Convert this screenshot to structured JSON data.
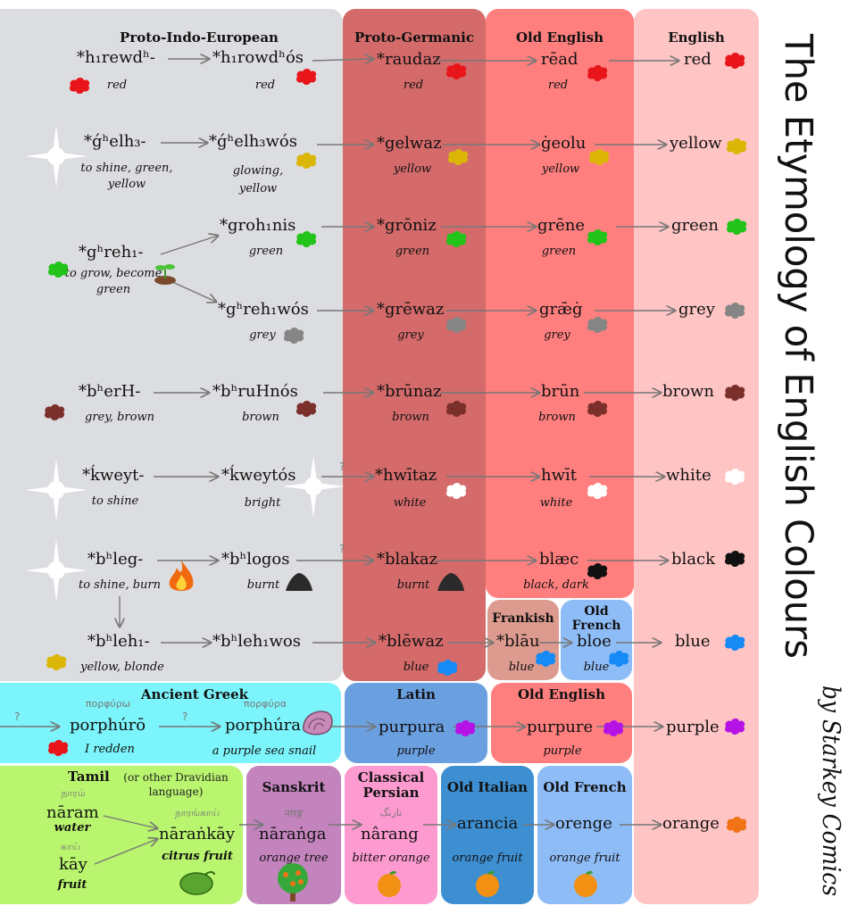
{
  "title": "The Etymology of English Colours",
  "byline": "by Starkey Comics",
  "headers": {
    "pie": "Proto-Indo-European",
    "pg": "Proto-Germanic",
    "oe": "Old English",
    "en": "English",
    "frankish": "Frankish",
    "old_french_blue": "Old French",
    "greek": "Ancient Greek",
    "latin": "Latin",
    "oe_purple": "Old English",
    "tamil": "Tamil",
    "tamil_note": "(or other Dravidian language)",
    "sanskrit": "Sanskrit",
    "persian": "Classical Persian",
    "italian": "Old Italian",
    "old_french": "Old French"
  },
  "colors": {
    "red": "#e8151b",
    "yellow": "#dcb607",
    "green": "#22c41a",
    "grey": "#858585",
    "brown": "#7a2f2b",
    "white": "#ffffff",
    "black": "#111111",
    "blue": "#168af5",
    "purple": "#b512e6",
    "orange": "#f17316",
    "pie_bg": "#dcdde0",
    "pg_bg": "#d46a6a",
    "oe_bg": "#ff7f7f",
    "en_bg": "#ffc4c4",
    "greek_bg": "#7cf4fb",
    "latin_bg": "#6a9fe0",
    "tamil_bg": "#b9f56e",
    "sanskrit_bg": "#c384be",
    "persian_bg": "#fd9ad0",
    "italian_bg": "#3d8fd1",
    "oldfr_bg": "#8ebcf6",
    "frankish_bg": "#dd9b8f"
  },
  "rows": {
    "red": {
      "pie1": "*h₁rewdʰ-",
      "pie1_meaning": "red",
      "pie2": "*h₁rowdʰós",
      "pie2_meaning": "red",
      "pg": "*raudaz",
      "pg_meaning": "red",
      "oe": "rēad",
      "oe_meaning": "red",
      "en": "red"
    },
    "yellow": {
      "pie1": "*ǵʰelh₃-",
      "pie1_meaning": "to shine, green, yellow",
      "pie2": "*ǵʰelh₃wós",
      "pie2_meaning": "glowing, yellow",
      "pg": "*gelwaz",
      "pg_meaning": "yellow",
      "oe": "ġeolu",
      "oe_meaning": "yellow",
      "en": "yellow"
    },
    "green": {
      "pie1": "*gʰreh₁-",
      "pie1_meaning": "to grow, become green",
      "pie2": "*groh₁nis",
      "pie2_meaning": "green",
      "pg": "*grōniz",
      "pg_meaning": "green",
      "oe": "grēne",
      "oe_meaning": "green",
      "en": "green"
    },
    "grey": {
      "pie2": "*gʰreh₁wós",
      "pie2_meaning": "grey",
      "pg": "*grēwaz",
      "pg_meaning": "grey",
      "oe": "grǣġ",
      "oe_meaning": "grey",
      "en": "grey"
    },
    "brown": {
      "pie1": "*bʰerH-",
      "pie1_meaning": "grey, brown",
      "pie2": "*bʰruHnós",
      "pie2_meaning": "brown",
      "pg": "*brūnaz",
      "pg_meaning": "brown",
      "oe": "brūn",
      "oe_meaning": "brown",
      "en": "brown"
    },
    "white": {
      "pie1": "*ḱweyt-",
      "pie1_meaning": "to shine",
      "pie2": "*ḱweytós",
      "pie2_meaning": "bright",
      "pg": "*hwītaz",
      "pg_meaning": "white",
      "oe": "hwīt",
      "oe_meaning": "white",
      "en": "white"
    },
    "black": {
      "pie1": "*bʰleg-",
      "pie1_meaning": "to shine, burn",
      "pie2": "*bʰlogos",
      "pie2_meaning": "burnt",
      "pg": "*blakaz",
      "pg_meaning": "burnt",
      "oe": "blæc",
      "oe_meaning": "black, dark",
      "en": "black"
    },
    "blue": {
      "pie1": "*bʰleh₁-",
      "pie1_meaning": "yellow, blonde",
      "pie2": "*bʰleh₁wos",
      "pg": "*blēwaz",
      "pg_meaning": "blue",
      "frankish": "*blāu",
      "frankish_meaning": "blue",
      "oldfr": "bloe",
      "oldfr_meaning": "blue",
      "en": "blue"
    },
    "purple": {
      "greek_script1": "πορφύρω",
      "greek1": "porphúrō",
      "greek1_meaning": "I redden",
      "greek_script2": "πορφύρα",
      "greek2": "porphúra",
      "greek2_meaning": "a purple sea snail",
      "latin": "purpura",
      "latin_meaning": "purple",
      "oe": "purpure",
      "oe_meaning": "purple",
      "en": "purple"
    },
    "orange": {
      "tamil_script1": "நாரம்",
      "tamil1": "nāram",
      "tamil1_meaning": "water",
      "tamil_script2": "காய்",
      "tamil2": "kāy",
      "tamil2_meaning": "fruit",
      "tamil_script3": "நாரங்காய்",
      "tamil3": "nāraṅkāy",
      "tamil3_meaning": "citrus fruit",
      "sanskrit_script": "नारङ्ग",
      "sanskrit": "nāraṅga",
      "sanskrit_meaning": "orange tree",
      "persian_script": "نارنگ",
      "persian": "nârang",
      "persian_meaning": "bitter orange",
      "italian": "arancia",
      "italian_meaning": "orange fruit",
      "oldfr": "orenge",
      "oldfr_meaning": "orange fruit",
      "en": "orange"
    }
  },
  "uncertain_mark": "?"
}
